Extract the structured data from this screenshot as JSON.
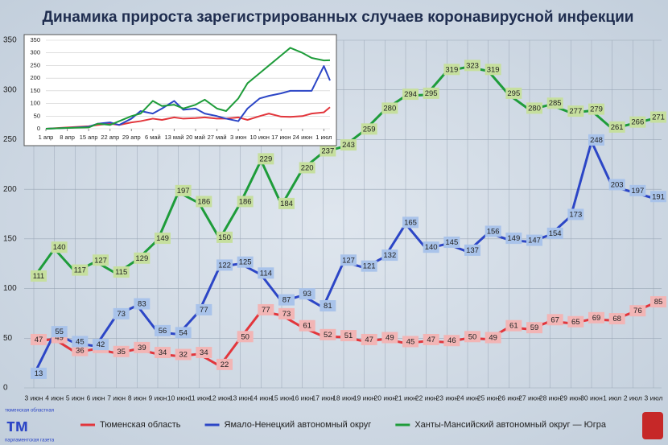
{
  "chart_data": [
    {
      "type": "line",
      "title": "Динамика прироста зарегистрированных случаев коронавирусной инфекции",
      "categories": [
        "3 июн",
        "4 июн",
        "5 июн",
        "6 июн",
        "7 июн",
        "8 июн",
        "9 июн",
        "10 июн",
        "11 июн",
        "12 июн",
        "13 июн",
        "14 июн",
        "15 июн",
        "16 июн",
        "17 июн",
        "18 июн",
        "19 июн",
        "20 июн",
        "21 июн",
        "22 июн",
        "23 июн",
        "24 июн",
        "25 июн",
        "26 июн",
        "27 июн",
        "28 июн",
        "29 июн",
        "30 июн",
        "1 июл",
        "2 июл",
        "3 июл"
      ],
      "series": [
        {
          "name": "Тюменская область",
          "color": "#e2363c",
          "label_color": "#f2b5b5",
          "values": [
            47,
            49,
            36,
            39,
            35,
            39,
            34,
            32,
            34,
            22,
            50,
            77,
            73,
            61,
            52,
            51,
            47,
            49,
            45,
            47,
            46,
            50,
            49,
            61,
            59,
            67,
            65,
            69,
            68,
            76,
            85
          ]
        },
        {
          "name": "Ямало-Ненецкий автономный округ",
          "color": "#2c46c6",
          "label_color": "#a9c3ea",
          "values": [
            13,
            55,
            45,
            42,
            73,
            83,
            56,
            54,
            77,
            122,
            125,
            114,
            87,
            93,
            81,
            127,
            121,
            132,
            165,
            140,
            145,
            137,
            156,
            149,
            147,
            154,
            173,
            248,
            203,
            197,
            191
          ]
        },
        {
          "name": "Ханты-Мансийский автономный округ — Югра",
          "color": "#1e9c3a",
          "label_color": "#c6df9e",
          "values": [
            111,
            140,
            117,
            127,
            115,
            129,
            149,
            197,
            186,
            150,
            186,
            229,
            184,
            220,
            237,
            243,
            259,
            280,
            294,
            295,
            319,
            323,
            319,
            295,
            280,
            285,
            277,
            279,
            261,
            266,
            271
          ]
        }
      ],
      "ylim": [
        0,
        350
      ],
      "yticks": [
        0,
        50,
        100,
        150,
        200,
        250,
        300,
        350
      ],
      "grid": true,
      "legend": "bottom"
    },
    {
      "type": "line",
      "x": [
        0,
        7,
        14,
        17,
        21,
        24,
        28,
        31,
        35,
        38,
        42,
        45,
        49,
        52,
        56,
        59,
        63,
        66,
        70,
        73,
        77,
        80,
        84,
        87,
        91,
        93
      ],
      "xlim": [
        0,
        93
      ],
      "xticks": [
        {
          "value": 0,
          "label": "1 апр"
        },
        {
          "value": 7,
          "label": "8 апр"
        },
        {
          "value": 14,
          "label": "15 апр"
        },
        {
          "value": 21,
          "label": "22 апр"
        },
        {
          "value": 28,
          "label": "29 апр"
        },
        {
          "value": 35,
          "label": "6 май"
        },
        {
          "value": 42,
          "label": "13 май"
        },
        {
          "value": 49,
          "label": "20 май"
        },
        {
          "value": 56,
          "label": "27 май"
        },
        {
          "value": 63,
          "label": "3 июн"
        },
        {
          "value": 70,
          "label": "10 июн"
        },
        {
          "value": 77,
          "label": "17 июн"
        },
        {
          "value": 84,
          "label": "24 июн"
        },
        {
          "value": 91,
          "label": "1 июл"
        }
      ],
      "series": [
        {
          "name": "Тюменская область",
          "color": "#e2363c",
          "values": [
            0,
            5,
            10,
            15,
            20,
            15,
            25,
            30,
            40,
            35,
            45,
            40,
            42,
            45,
            40,
            40,
            45,
            35,
            50,
            60,
            48,
            47,
            50,
            60,
            65,
            85
          ]
        },
        {
          "name": "Ямало-Ненецкий автономный округ",
          "color": "#2c46c6",
          "values": [
            0,
            3,
            8,
            20,
            25,
            15,
            40,
            70,
            60,
            80,
            110,
            75,
            80,
            60,
            50,
            40,
            30,
            80,
            120,
            130,
            140,
            150,
            150,
            150,
            248,
            191
          ]
        },
        {
          "name": "Ханты-Мансийский автономный округ — Югра",
          "color": "#1e9c3a",
          "values": [
            0,
            3,
            5,
            20,
            15,
            30,
            50,
            60,
            110,
            90,
            95,
            80,
            95,
            115,
            80,
            70,
            120,
            180,
            220,
            250,
            290,
            320,
            300,
            280,
            270,
            271
          ]
        }
      ],
      "ylim": [
        0,
        350
      ],
      "yticks": [
        0,
        50,
        100,
        150,
        200,
        250,
        300,
        350
      ],
      "grid": true
    }
  ],
  "logo": {
    "top": "тюменская областная",
    "mark": "тм",
    "bottom": "парламентская газета"
  }
}
